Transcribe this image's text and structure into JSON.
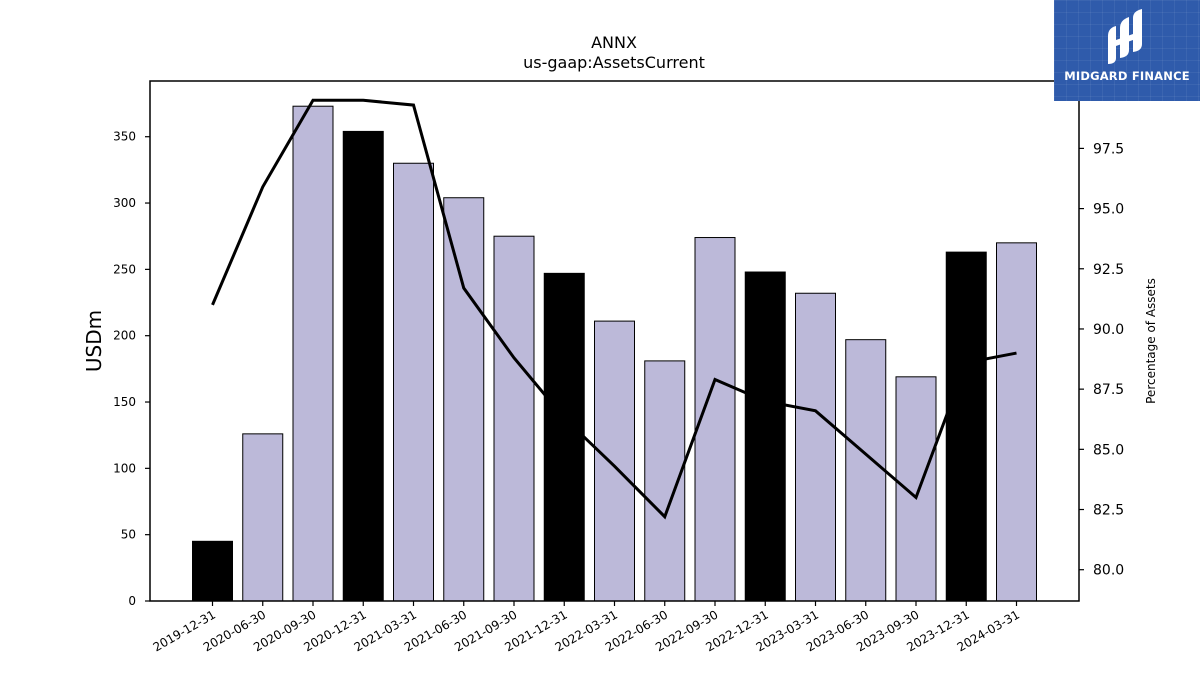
{
  "brand": {
    "name": "MIDGARD FINANCE",
    "bg_color": "#2f5bab"
  },
  "chart_data": {
    "type": "bar",
    "title": "ANNX",
    "subtitle": "us-gaap:AssetsCurrent",
    "ylabel": "USDm",
    "y2label": "Percentage of Assets",
    "categories": [
      "2019-12-31",
      "2020-06-30",
      "2020-09-30",
      "2020-12-31",
      "2021-03-31",
      "2021-06-30",
      "2021-09-30",
      "2021-12-31",
      "2022-03-31",
      "2022-06-30",
      "2022-09-30",
      "2022-12-31",
      "2023-03-31",
      "2023-06-30",
      "2023-09-30",
      "2023-12-31",
      "2024-03-31"
    ],
    "series": [
      {
        "kind": "bar",
        "axis": "left",
        "values": [
          45,
          126,
          373,
          354,
          330,
          304,
          275,
          247,
          211,
          181,
          274,
          248,
          232,
          197,
          169,
          263,
          270
        ],
        "colors": [
          "#000000",
          "#bcb9d9",
          "#bcb9d9",
          "#000000",
          "#bcb9d9",
          "#bcb9d9",
          "#bcb9d9",
          "#000000",
          "#bcb9d9",
          "#bcb9d9",
          "#bcb9d9",
          "#000000",
          "#bcb9d9",
          "#bcb9d9",
          "#bcb9d9",
          "#000000",
          "#bcb9d9"
        ]
      },
      {
        "kind": "line",
        "axis": "right",
        "color": "#000000",
        "values": [
          91.0,
          95.9,
          99.5,
          99.5,
          99.3,
          91.7,
          88.8,
          86.3,
          84.3,
          82.2,
          87.9,
          87.0,
          86.6,
          84.8,
          83.0,
          88.6,
          89.0
        ]
      }
    ],
    "ylim": [
      0,
      392
    ],
    "y2lim": [
      78.7,
      100.3
    ],
    "yticks": [
      0,
      50,
      100,
      150,
      200,
      250,
      300,
      350
    ],
    "y2ticks": [
      80.0,
      82.5,
      85.0,
      87.5,
      90.0,
      92.5,
      95.0,
      97.5
    ],
    "grid": false
  }
}
